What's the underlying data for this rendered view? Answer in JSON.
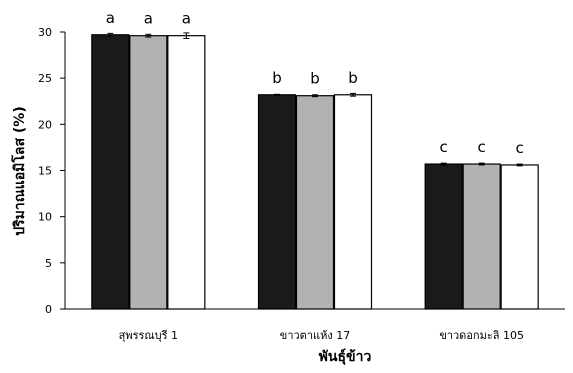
{
  "chart_data": {
    "type": "bar",
    "title": "",
    "xlabel": "พันธุ์ข้าว",
    "ylabel": "ปริมาณแอมิโลส (%)",
    "ylim": [
      0,
      30
    ],
    "yticks": [
      "0",
      "5",
      "10",
      "15",
      "20",
      "25",
      "30"
    ],
    "categories": [
      "สุพรรณบุรี 1",
      "ขาวตาแห้ง 17",
      "ขาวดอกมะลิ 105"
    ],
    "series": [
      {
        "color": "#1a1a1a",
        "values": [
          29.7,
          23.2,
          15.7
        ],
        "errors": [
          0.15,
          0.05,
          0.1
        ],
        "labels": [
          "a",
          "b",
          "c"
        ]
      },
      {
        "color": "#b2b2b2",
        "values": [
          29.6,
          23.1,
          15.7
        ],
        "errors": [
          0.15,
          0.1,
          0.1
        ],
        "labels": [
          "a",
          "b",
          "c"
        ]
      },
      {
        "color": "#ffffff",
        "values": [
          29.6,
          23.2,
          15.6
        ],
        "errors": [
          0.3,
          0.15,
          0.1
        ],
        "labels": [
          "a",
          "b",
          "c"
        ]
      }
    ],
    "grid": false,
    "legend": false
  }
}
